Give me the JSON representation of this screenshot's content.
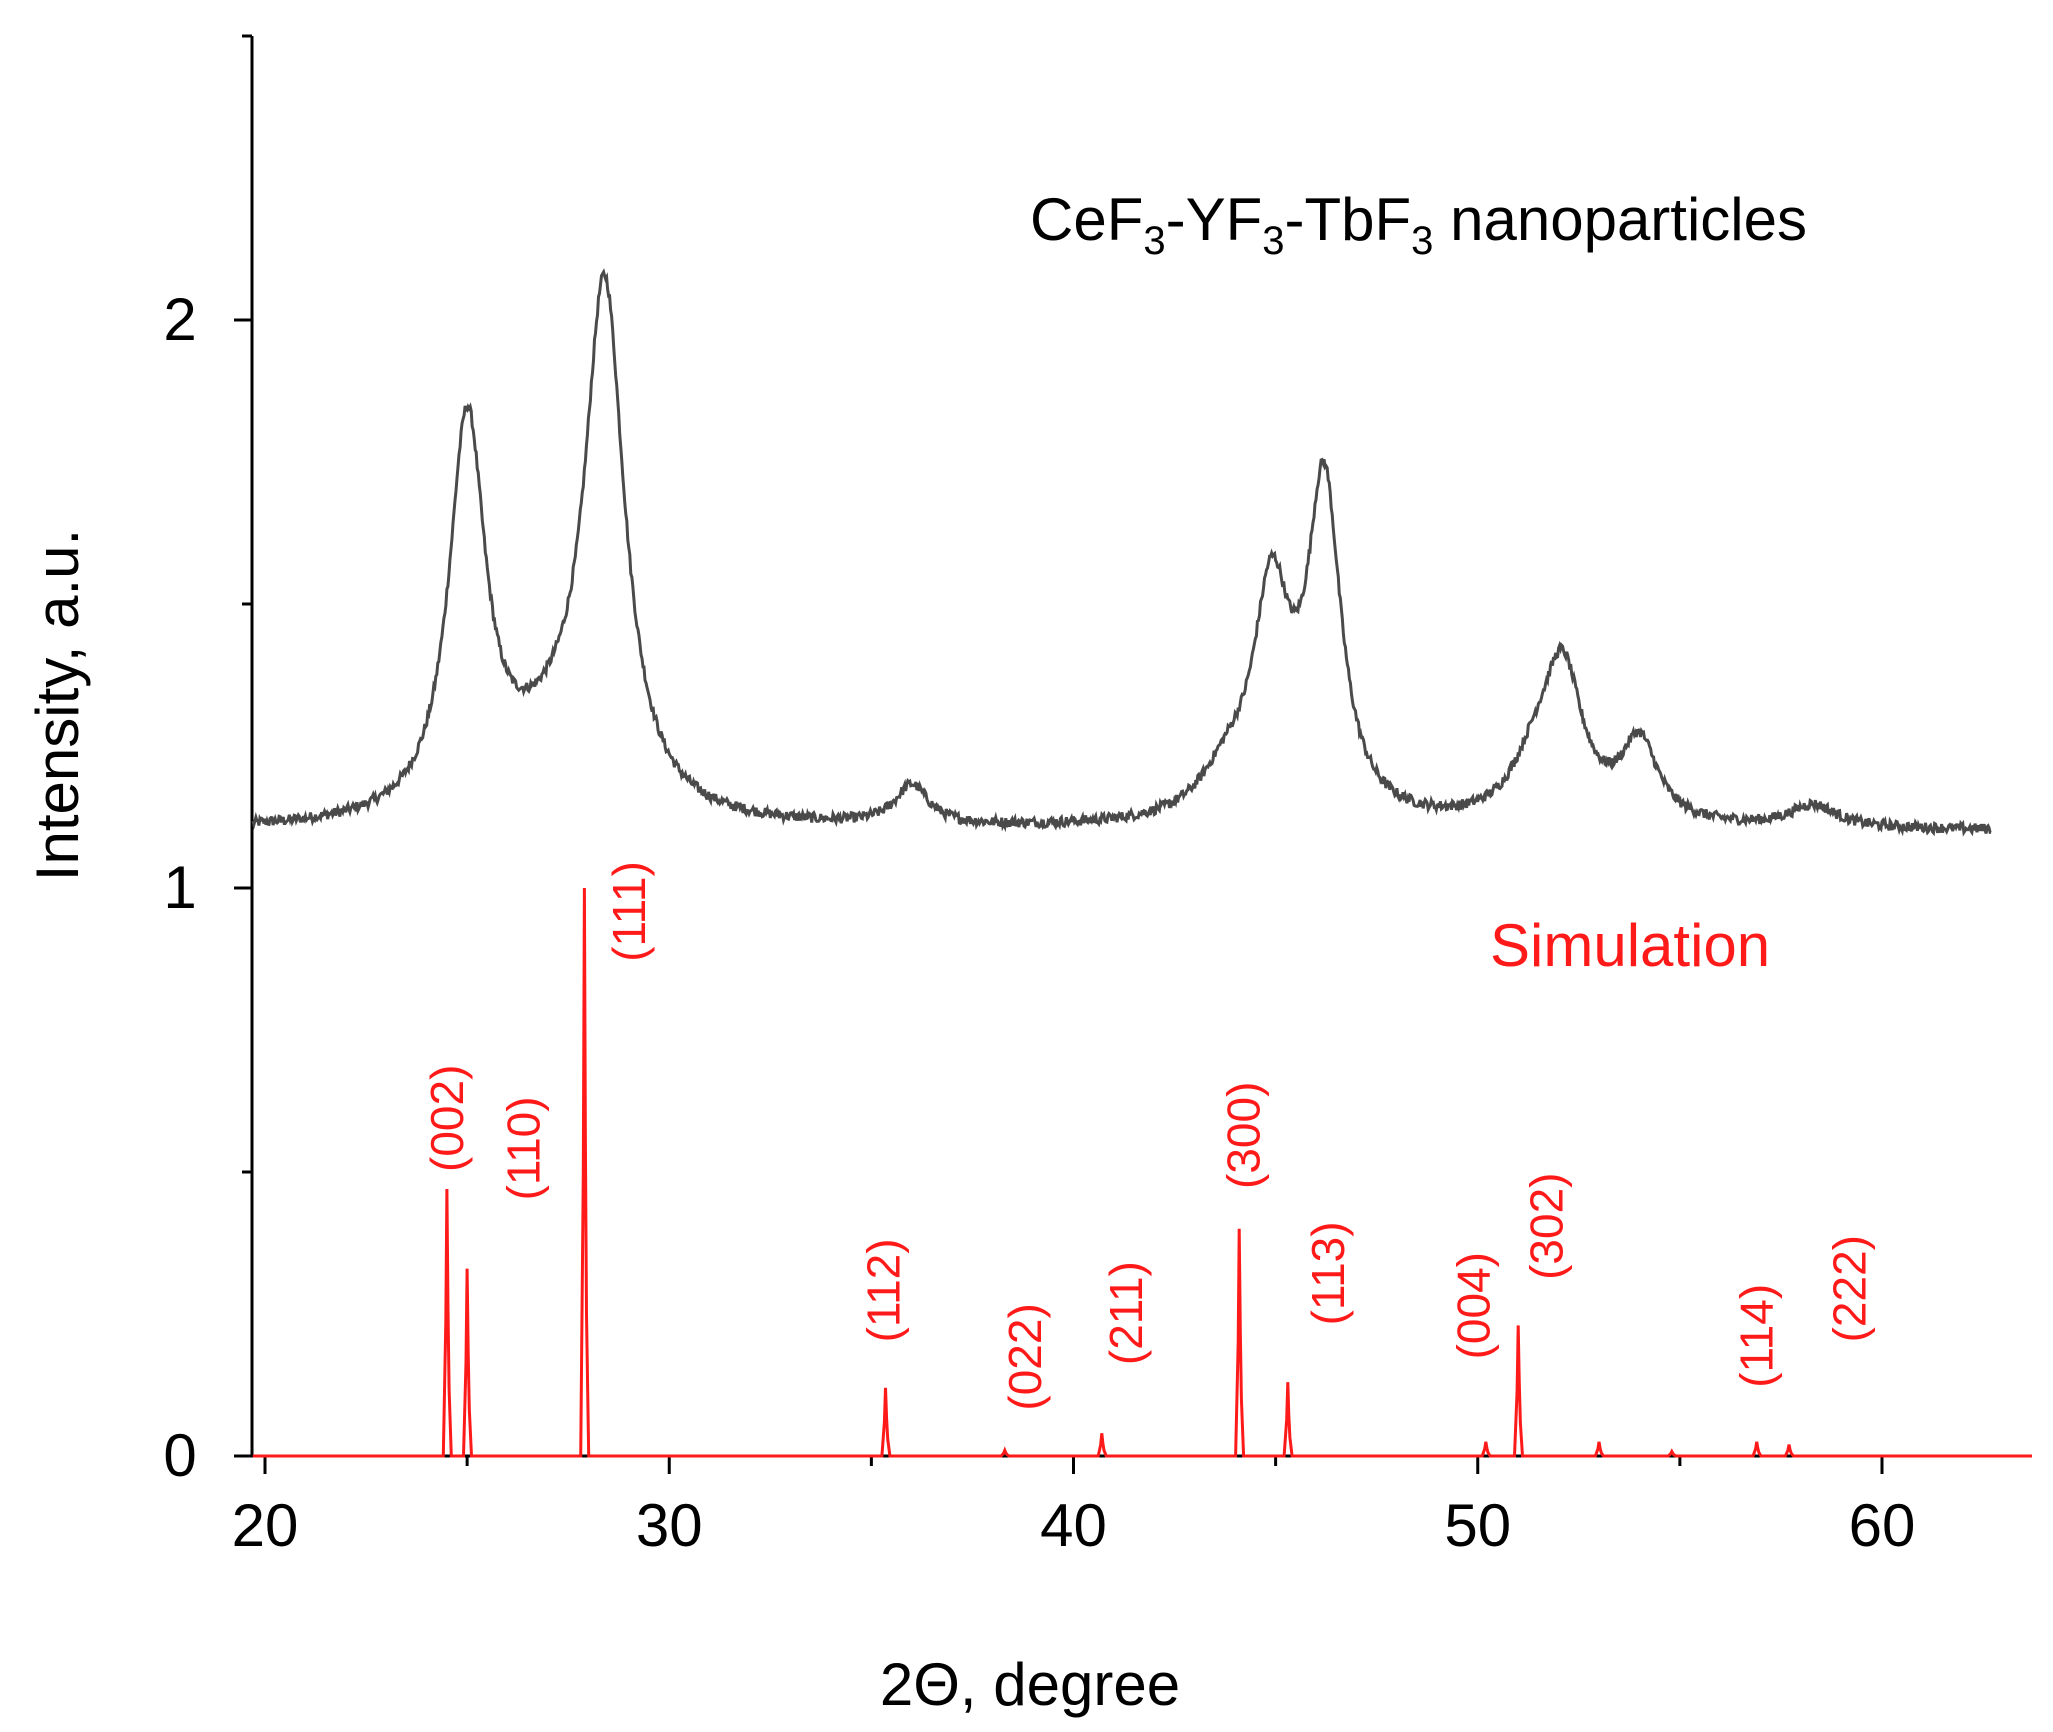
{
  "chart_data": {
    "type": "line",
    "xlabel": "2Θ, degree",
    "ylabel": "Intensity, a.u.",
    "xlim": [
      19.7,
      63.8
    ],
    "ylim": [
      0,
      2.5
    ],
    "xticks": [
      20,
      30,
      40,
      50,
      60
    ],
    "yticks": [
      0,
      1,
      2
    ],
    "grid": false,
    "colors": {
      "experiment": "#4a4a4a",
      "simulation": "#ff1a1a",
      "axis": "#000000"
    },
    "experiment": {
      "name": "CeF3-YF3-TbF3 nanoparticles",
      "label_parts": [
        "CeF",
        "3",
        "-YF",
        "3",
        "-TbF",
        "3",
        " nanoparticles"
      ],
      "x_range": [
        19.7,
        62.7
      ],
      "baseline": 1.1,
      "peaks": [
        {
          "center": 25.0,
          "height": 0.69,
          "width": 0.55
        },
        {
          "center": 26.6,
          "height": 0.06,
          "width": 1.3
        },
        {
          "center": 28.4,
          "height": 0.92,
          "width": 0.6
        },
        {
          "center": 27.3,
          "height": 0.05,
          "width": 0.9
        },
        {
          "center": 36.0,
          "height": 0.07,
          "width": 0.5
        },
        {
          "center": 43.8,
          "height": 0.07,
          "width": 0.8
        },
        {
          "center": 44.9,
          "height": 0.38,
          "width": 0.55
        },
        {
          "center": 46.2,
          "height": 0.58,
          "width": 0.5
        },
        {
          "center": 51.4,
          "height": 0.08,
          "width": 0.7
        },
        {
          "center": 52.1,
          "height": 0.26,
          "width": 0.6
        },
        {
          "center": 54.0,
          "height": 0.14,
          "width": 0.55
        },
        {
          "center": 58.3,
          "height": 0.04,
          "width": 0.7
        }
      ]
    },
    "simulation": {
      "name": "Simulation",
      "x_range": [
        19.7,
        63.8
      ],
      "peaks": [
        {
          "x": 24.5,
          "y": 0.47
        },
        {
          "x": 25.0,
          "y": 0.33
        },
        {
          "x": 27.9,
          "y": 1.0
        },
        {
          "x": 35.35,
          "y": 0.12
        },
        {
          "x": 38.3,
          "y": 0.01
        },
        {
          "x": 40.7,
          "y": 0.04
        },
        {
          "x": 44.1,
          "y": 0.4
        },
        {
          "x": 45.3,
          "y": 0.13
        },
        {
          "x": 50.2,
          "y": 0.025
        },
        {
          "x": 51.0,
          "y": 0.23
        },
        {
          "x": 53.0,
          "y": 0.025
        },
        {
          "x": 54.8,
          "y": 0.008
        },
        {
          "x": 56.9,
          "y": 0.025
        },
        {
          "x": 57.7,
          "y": 0.02
        }
      ],
      "annotations": [
        {
          "label": "(002)",
          "x": 24.5,
          "y": 0.5
        },
        {
          "label": "(110)",
          "x": 26.4,
          "y": 0.45
        },
        {
          "label": "(111)",
          "x": 29.0,
          "y": 0.87
        },
        {
          "label": "(112)",
          "x": 35.3,
          "y": 0.2
        },
        {
          "label": "(022)",
          "x": 38.8,
          "y": 0.08
        },
        {
          "label": "(211)",
          "x": 41.3,
          "y": 0.16
        },
        {
          "label": "(300)",
          "x": 44.2,
          "y": 0.47
        },
        {
          "label": "(113)",
          "x": 46.3,
          "y": 0.23
        },
        {
          "label": "(004)",
          "x": 49.9,
          "y": 0.17
        },
        {
          "label": "(302)",
          "x": 51.7,
          "y": 0.31
        },
        {
          "label": "(114)",
          "x": 56.9,
          "y": 0.12
        },
        {
          "label": "(222)",
          "x": 59.2,
          "y": 0.2
        }
      ]
    }
  }
}
